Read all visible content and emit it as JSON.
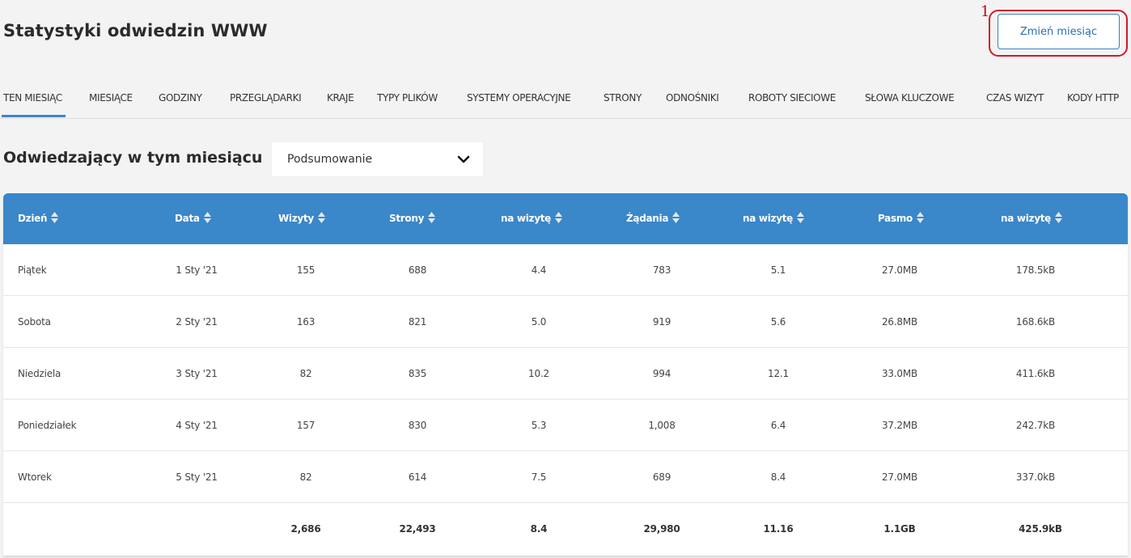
{
  "header": {
    "title": "Statystyki odwiedzin WWW",
    "change_month_label": "Zmień miesiąc",
    "annotation_number": "1"
  },
  "tabs": [
    {
      "label": "TEN MIESIĄC",
      "active": true
    },
    {
      "label": "MIESIĄCE"
    },
    {
      "label": "GODZINY"
    },
    {
      "label": "PRZEGLĄDARKI"
    },
    {
      "label": "KRAJE"
    },
    {
      "label": "TYPY PLIKÓW"
    },
    {
      "label": "SYSTEMY OPERACYJNE"
    },
    {
      "label": "STRONY"
    },
    {
      "label": "ODNOŚNIKI"
    },
    {
      "label": "ROBOTY SIECIOWE"
    },
    {
      "label": "SŁOWA KLUCZOWE"
    },
    {
      "label": "CZAS WIZYT"
    },
    {
      "label": "KODY HTTP"
    }
  ],
  "section": {
    "title": "Odwiedzający w tym miesiącu",
    "select_value": "Podsumowanie"
  },
  "table": {
    "columns": [
      "Dzień",
      "Data",
      "Wizyty",
      "Strony",
      "na wizytę",
      "Żądania",
      "na wizytę",
      "Pasmo",
      "na wizytę"
    ],
    "rows": [
      [
        "Piątek",
        "1 Sty '21",
        "155",
        "688",
        "4.4",
        "783",
        "5.1",
        "27.0MB",
        "178.5kB"
      ],
      [
        "Sobota",
        "2 Sty '21",
        "163",
        "821",
        "5.0",
        "919",
        "5.6",
        "26.8MB",
        "168.6kB"
      ],
      [
        "Niedziela",
        "3 Sty '21",
        "82",
        "835",
        "10.2",
        "994",
        "12.1",
        "33.0MB",
        "411.6kB"
      ],
      [
        "Poniedziałek",
        "4 Sty '21",
        "157",
        "830",
        "5.3",
        "1,008",
        "6.4",
        "37.2MB",
        "242.7kB"
      ],
      [
        "Wtorek",
        "5 Sty '21",
        "82",
        "614",
        "7.5",
        "689",
        "8.4",
        "27.0MB",
        "337.0kB"
      ]
    ],
    "totals": [
      "",
      "",
      "2,686",
      "22,493",
      "8.4",
      "29,980",
      "11.16",
      "1.1GB",
      "425.9kB"
    ]
  },
  "colors": {
    "accent": "#3a87c9",
    "annotation": "#d11a2a"
  }
}
